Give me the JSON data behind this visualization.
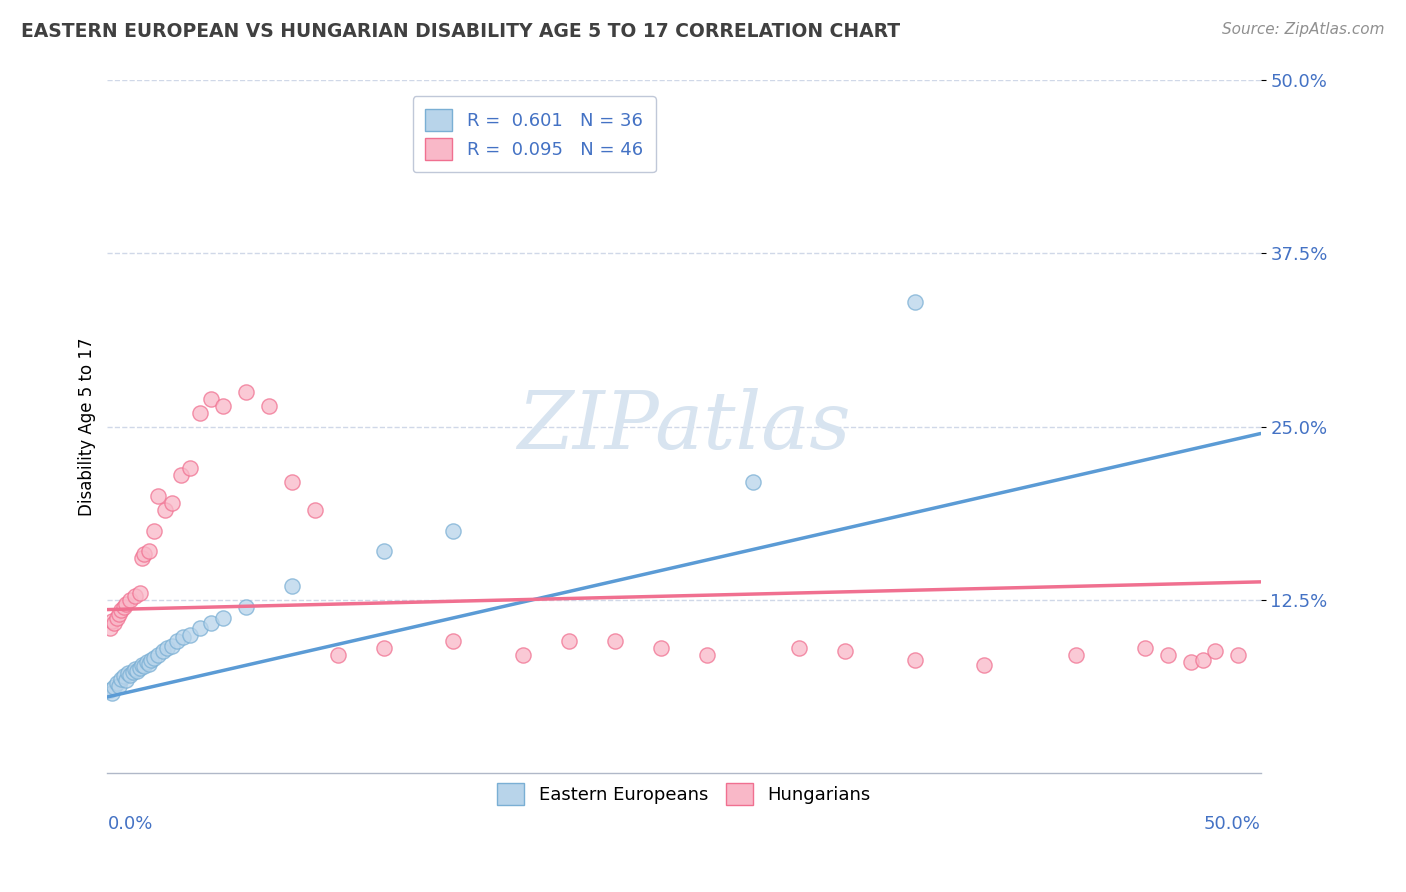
{
  "title": "EASTERN EUROPEAN VS HUNGARIAN DISABILITY AGE 5 TO 17 CORRELATION CHART",
  "source": "Source: ZipAtlas.com",
  "ylabel": "Disability Age 5 to 17",
  "xlim": [
    0,
    0.5
  ],
  "ylim": [
    0,
    0.5
  ],
  "ytick_vals": [
    0.125,
    0.25,
    0.375,
    0.5
  ],
  "ytick_labels": [
    "12.5%",
    "25.0%",
    "37.5%",
    "50.0%"
  ],
  "blue_fill": "#b8d4ea",
  "pink_fill": "#f9b8c8",
  "blue_edge": "#7aafd4",
  "pink_edge": "#f07090",
  "blue_line": "#5b9bd5",
  "pink_line": "#f07090",
  "grid_color": "#d0d8e8",
  "spine_color": "#b0b8c8",
  "title_color": "#404040",
  "source_color": "#909090",
  "tick_color": "#4472c4",
  "legend_edge": "#c0c8d8",
  "watermark_color": "#d8e4f0",
  "legend_text_color": "#4472c4",
  "ee_x": [
    0.001,
    0.002,
    0.003,
    0.004,
    0.005,
    0.006,
    0.007,
    0.008,
    0.009,
    0.01,
    0.011,
    0.012,
    0.013,
    0.014,
    0.015,
    0.016,
    0.017,
    0.018,
    0.019,
    0.02,
    0.022,
    0.024,
    0.026,
    0.028,
    0.03,
    0.033,
    0.036,
    0.04,
    0.045,
    0.05,
    0.06,
    0.08,
    0.12,
    0.15,
    0.28,
    0.35
  ],
  "ee_y": [
    0.06,
    0.058,
    0.062,
    0.065,
    0.063,
    0.068,
    0.07,
    0.067,
    0.072,
    0.071,
    0.073,
    0.075,
    0.074,
    0.076,
    0.078,
    0.077,
    0.08,
    0.079,
    0.082,
    0.083,
    0.085,
    0.088,
    0.09,
    0.092,
    0.095,
    0.098,
    0.1,
    0.105,
    0.108,
    0.112,
    0.12,
    0.135,
    0.16,
    0.175,
    0.21,
    0.34
  ],
  "hu_x": [
    0.001,
    0.002,
    0.003,
    0.004,
    0.005,
    0.006,
    0.007,
    0.008,
    0.01,
    0.012,
    0.014,
    0.015,
    0.016,
    0.018,
    0.02,
    0.022,
    0.025,
    0.028,
    0.032,
    0.036,
    0.04,
    0.045,
    0.05,
    0.06,
    0.07,
    0.08,
    0.09,
    0.1,
    0.12,
    0.15,
    0.18,
    0.2,
    0.22,
    0.24,
    0.26,
    0.3,
    0.32,
    0.35,
    0.38,
    0.42,
    0.45,
    0.46,
    0.47,
    0.475,
    0.48,
    0.49
  ],
  "hu_y": [
    0.105,
    0.11,
    0.108,
    0.112,
    0.115,
    0.118,
    0.12,
    0.122,
    0.125,
    0.128,
    0.13,
    0.155,
    0.158,
    0.16,
    0.175,
    0.2,
    0.19,
    0.195,
    0.215,
    0.22,
    0.26,
    0.27,
    0.265,
    0.275,
    0.265,
    0.21,
    0.19,
    0.085,
    0.09,
    0.095,
    0.085,
    0.095,
    0.095,
    0.09,
    0.085,
    0.09,
    0.088,
    0.082,
    0.078,
    0.085,
    0.09,
    0.085,
    0.08,
    0.082,
    0.088,
    0.085
  ],
  "ee_line_x": [
    0.0,
    0.5
  ],
  "ee_line_y": [
    0.055,
    0.245
  ],
  "hu_line_x": [
    0.0,
    0.5
  ],
  "hu_line_y": [
    0.118,
    0.138
  ],
  "legend_label_blue": "Eastern Europeans",
  "legend_label_pink": "Hungarians",
  "marker_size": 120,
  "marker_alpha": 0.75
}
